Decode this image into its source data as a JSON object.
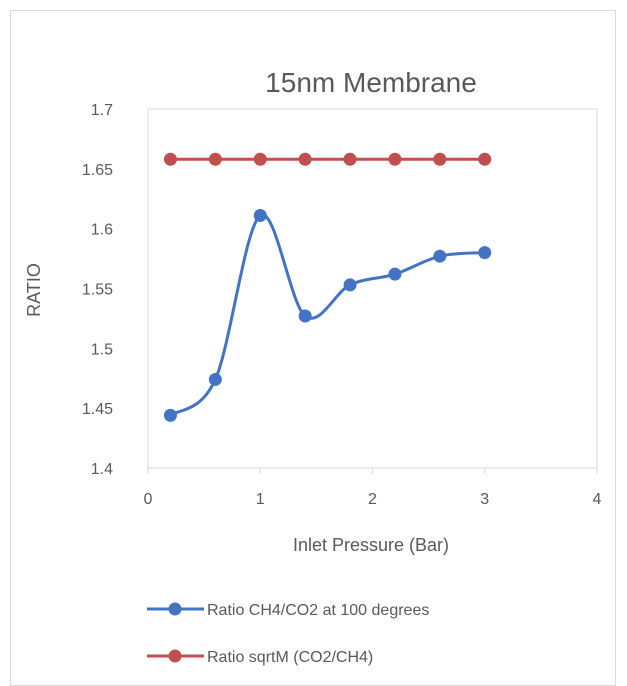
{
  "chart_data": {
    "type": "line",
    "title": "15nm Membrane",
    "xlabel": "Inlet Pressure (Bar)",
    "ylabel": "RATIO",
    "xlim": [
      0,
      4
    ],
    "ylim": [
      1.4,
      1.7
    ],
    "x_ticks": [
      {
        "value": 0,
        "label": "0"
      },
      {
        "value": 1,
        "label": "1"
      },
      {
        "value": 2,
        "label": "2"
      },
      {
        "value": 3,
        "label": "3"
      },
      {
        "value": 4,
        "label": "4"
      }
    ],
    "y_ticks": [
      {
        "value": 1.4,
        "label": "1.4"
      },
      {
        "value": 1.45,
        "label": "1.45"
      },
      {
        "value": 1.5,
        "label": "1.5"
      },
      {
        "value": 1.55,
        "label": "1.55"
      },
      {
        "value": 1.6,
        "label": "1.6"
      },
      {
        "value": 1.65,
        "label": "1.65"
      },
      {
        "value": 1.7,
        "label": "1.7"
      }
    ],
    "grid": false,
    "legend_position": "bottom",
    "series": [
      {
        "name": "Ratio CH4/CO2 at 100 degrees",
        "color": "#4472c4",
        "smooth": true,
        "x": [
          0.2,
          0.6,
          1.0,
          1.4,
          1.8,
          2.2,
          2.6,
          3.0
        ],
        "y": [
          1.444,
          1.474,
          1.611,
          1.527,
          1.553,
          1.562,
          1.577,
          1.58
        ]
      },
      {
        "name": "Ratio sqrtM (CO2/CH4)",
        "color": "#c0504d",
        "smooth": false,
        "x": [
          0.2,
          0.6,
          1.0,
          1.4,
          1.8,
          2.2,
          2.6,
          3.0
        ],
        "y": [
          1.658,
          1.658,
          1.658,
          1.658,
          1.658,
          1.658,
          1.658,
          1.658
        ]
      }
    ]
  }
}
